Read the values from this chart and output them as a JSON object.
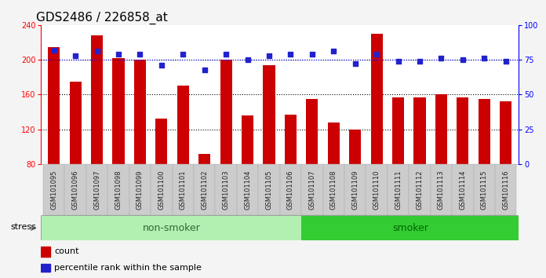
{
  "title": "GDS2486 / 226858_at",
  "categories": [
    "GSM101095",
    "GSM101096",
    "GSM101097",
    "GSM101098",
    "GSM101099",
    "GSM101100",
    "GSM101101",
    "GSM101102",
    "GSM101103",
    "GSM101104",
    "GSM101105",
    "GSM101106",
    "GSM101107",
    "GSM101108",
    "GSM101109",
    "GSM101110",
    "GSM101111",
    "GSM101112",
    "GSM101113",
    "GSM101114",
    "GSM101115",
    "GSM101116"
  ],
  "counts": [
    215,
    175,
    228,
    202,
    200,
    132,
    170,
    92,
    200,
    136,
    194,
    137,
    155,
    128,
    120,
    230,
    157,
    157,
    160,
    157,
    155,
    152
  ],
  "percentile": [
    82,
    78,
    81,
    79,
    79,
    71,
    79,
    68,
    79,
    75,
    78,
    79,
    79,
    81,
    72,
    79,
    74,
    74,
    76,
    75,
    76,
    74
  ],
  "non_smoker_count": 12,
  "smoker_count": 10,
  "ylim_left": [
    80,
    240
  ],
  "ylim_right": [
    0,
    100
  ],
  "yticks_left": [
    80,
    120,
    160,
    200,
    240
  ],
  "yticks_right": [
    0,
    25,
    50,
    75,
    100
  ],
  "bar_color": "#cc0000",
  "dot_color": "#2222cc",
  "non_smoker_color": "#b2f0b2",
  "smoker_color": "#33cc33",
  "non_smoker_text_color": "#336633",
  "smoker_text_color": "#006600",
  "xticklabel_bg": "#cccccc",
  "plot_bg_color": "#ffffff",
  "fig_bg_color": "#f4f4f4",
  "stress_label": "stress",
  "non_smoker_label": "non-smoker",
  "smoker_label": "smoker",
  "legend_count_label": "count",
  "legend_pct_label": "percentile rank within the sample",
  "title_fontsize": 11,
  "tick_fontsize": 7,
  "xtick_fontsize": 6,
  "legend_fontsize": 8,
  "group_fontsize": 9
}
